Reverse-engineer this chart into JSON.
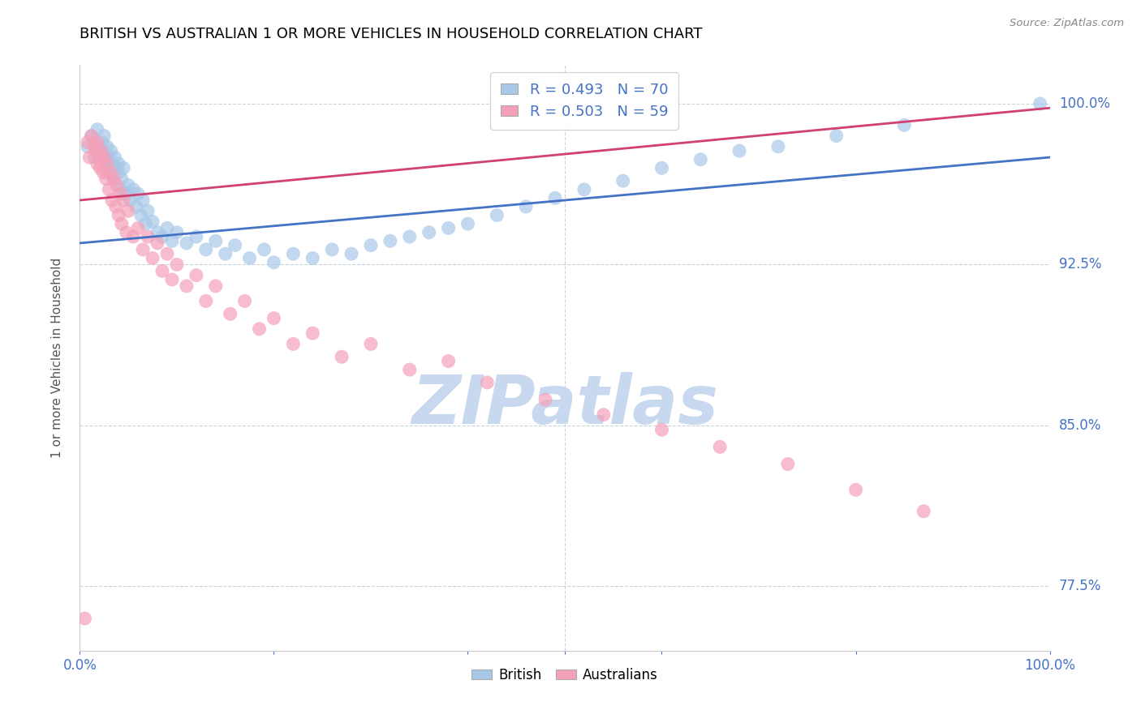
{
  "title": "BRITISH VS AUSTRALIAN 1 OR MORE VEHICLES IN HOUSEHOLD CORRELATION CHART",
  "source": "Source: ZipAtlas.com",
  "ylabel": "1 or more Vehicles in Household",
  "xlim": [
    0,
    1.0
  ],
  "ylim": [
    0.745,
    1.018
  ],
  "yticks": [
    0.775,
    0.85,
    0.925,
    1.0
  ],
  "ytick_labels": [
    "77.5%",
    "85.0%",
    "92.5%",
    "100.0%"
  ],
  "xticks": [
    0.0,
    0.2,
    0.4,
    0.5,
    0.6,
    0.8,
    1.0
  ],
  "xtick_labels": [
    "0.0%",
    "",
    "",
    "",
    "",
    "",
    "100.0%"
  ],
  "british_color": "#A8C8E8",
  "australian_color": "#F4A0B8",
  "british_line_color": "#4472C4",
  "australian_line_color": "#D04070",
  "british_R": 0.493,
  "british_N": 70,
  "australian_R": 0.503,
  "australian_N": 59,
  "watermark": "ZIPatlas",
  "watermark_color": "#C8D8EE",
  "background_color": "#FFFFFF",
  "grid_color": "#C8D4DC",
  "title_color": "#000000",
  "axis_label_color": "#555555",
  "tick_color": "#4472C4",
  "source_color": "#888888",
  "british_x": [
    0.008,
    0.012,
    0.015,
    0.018,
    0.02,
    0.022,
    0.023,
    0.025,
    0.025,
    0.027,
    0.028,
    0.03,
    0.03,
    0.032,
    0.033,
    0.035,
    0.036,
    0.038,
    0.04,
    0.04,
    0.042,
    0.043,
    0.045,
    0.048,
    0.05,
    0.052,
    0.055,
    0.058,
    0.06,
    0.063,
    0.065,
    0.068,
    0.07,
    0.075,
    0.08,
    0.085,
    0.09,
    0.095,
    0.1,
    0.11,
    0.12,
    0.13,
    0.14,
    0.15,
    0.16,
    0.175,
    0.19,
    0.2,
    0.22,
    0.24,
    0.26,
    0.28,
    0.3,
    0.32,
    0.34,
    0.36,
    0.38,
    0.4,
    0.43,
    0.46,
    0.49,
    0.52,
    0.56,
    0.6,
    0.64,
    0.68,
    0.72,
    0.78,
    0.85,
    0.99
  ],
  "british_y": [
    0.98,
    0.985,
    0.975,
    0.988,
    0.98,
    0.978,
    0.982,
    0.975,
    0.985,
    0.972,
    0.98,
    0.975,
    0.968,
    0.978,
    0.972,
    0.965,
    0.975,
    0.97,
    0.968,
    0.972,
    0.96,
    0.965,
    0.97,
    0.958,
    0.962,
    0.955,
    0.96,
    0.952,
    0.958,
    0.948,
    0.955,
    0.944,
    0.95,
    0.945,
    0.94,
    0.938,
    0.942,
    0.936,
    0.94,
    0.935,
    0.938,
    0.932,
    0.936,
    0.93,
    0.934,
    0.928,
    0.932,
    0.926,
    0.93,
    0.928,
    0.932,
    0.93,
    0.934,
    0.936,
    0.938,
    0.94,
    0.942,
    0.944,
    0.948,
    0.952,
    0.956,
    0.96,
    0.964,
    0.97,
    0.974,
    0.978,
    0.98,
    0.985,
    0.99,
    1.0
  ],
  "australian_x": [
    0.005,
    0.008,
    0.01,
    0.012,
    0.015,
    0.016,
    0.018,
    0.018,
    0.02,
    0.021,
    0.022,
    0.024,
    0.025,
    0.027,
    0.028,
    0.03,
    0.032,
    0.033,
    0.035,
    0.037,
    0.038,
    0.04,
    0.042,
    0.043,
    0.045,
    0.048,
    0.05,
    0.055,
    0.06,
    0.065,
    0.07,
    0.075,
    0.08,
    0.085,
    0.09,
    0.095,
    0.1,
    0.11,
    0.12,
    0.13,
    0.14,
    0.155,
    0.17,
    0.185,
    0.2,
    0.22,
    0.24,
    0.27,
    0.3,
    0.34,
    0.38,
    0.42,
    0.48,
    0.54,
    0.6,
    0.66,
    0.73,
    0.8,
    0.87
  ],
  "australian_y": [
    0.76,
    0.982,
    0.975,
    0.985,
    0.98,
    0.978,
    0.972,
    0.982,
    0.975,
    0.97,
    0.978,
    0.968,
    0.975,
    0.965,
    0.972,
    0.96,
    0.968,
    0.955,
    0.965,
    0.952,
    0.962,
    0.948,
    0.958,
    0.944,
    0.955,
    0.94,
    0.95,
    0.938,
    0.942,
    0.932,
    0.938,
    0.928,
    0.935,
    0.922,
    0.93,
    0.918,
    0.925,
    0.915,
    0.92,
    0.908,
    0.915,
    0.902,
    0.908,
    0.895,
    0.9,
    0.888,
    0.893,
    0.882,
    0.888,
    0.876,
    0.88,
    0.87,
    0.862,
    0.855,
    0.848,
    0.84,
    0.832,
    0.82,
    0.81
  ]
}
